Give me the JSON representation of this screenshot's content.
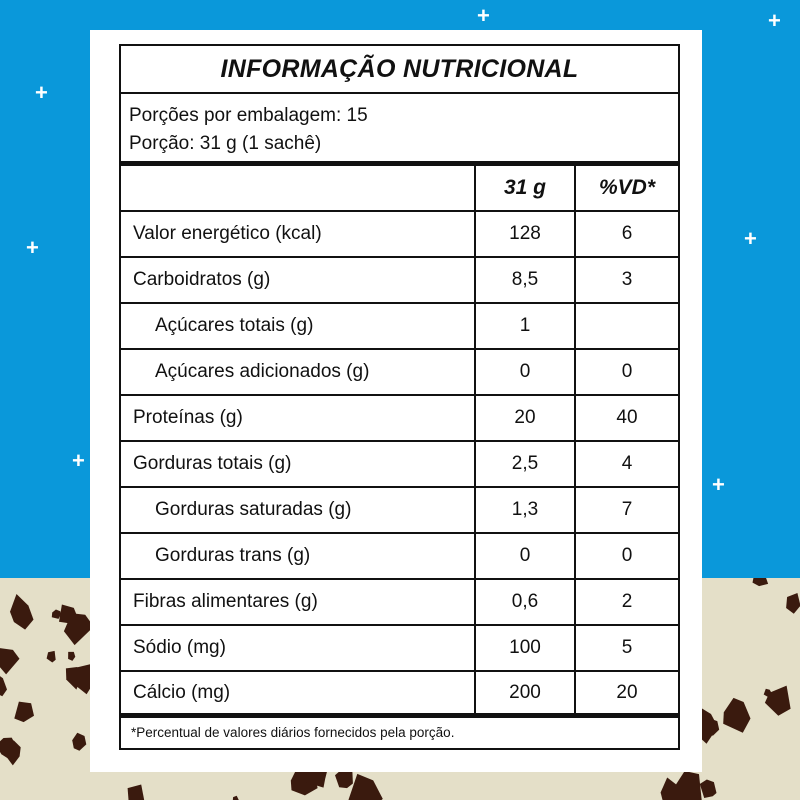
{
  "colors": {
    "background_top": "#0a98da",
    "background_bottom": "#e4dfc8",
    "chips": "#3a1a0e"
  },
  "label": {
    "title": "INFORMAÇÃO NUTRICIONAL",
    "servings_per_package": "Porções por embalagem: 15",
    "serving_size": "Porção: 31 g (1 sachê)",
    "columns": [
      "",
      "31 g",
      "%VD*"
    ],
    "rows": [
      {
        "name": "Valor energético (kcal)",
        "amount": "128",
        "dv": "6",
        "indent": false
      },
      {
        "name": "Carboidratos (g)",
        "amount": "8,5",
        "dv": "3",
        "indent": false
      },
      {
        "name": "Açúcares totais (g)",
        "amount": "1",
        "dv": "",
        "indent": true
      },
      {
        "name": "Açúcares adicionados (g)",
        "amount": "0",
        "dv": "0",
        "indent": true
      },
      {
        "name": "Proteínas (g)",
        "amount": "20",
        "dv": "40",
        "indent": false
      },
      {
        "name": "Gorduras totais (g)",
        "amount": "2,5",
        "dv": "4",
        "indent": false
      },
      {
        "name": "Gorduras saturadas (g)",
        "amount": "1,3",
        "dv": "7",
        "indent": true
      },
      {
        "name": "Gorduras trans (g)",
        "amount": "0",
        "dv": "0",
        "indent": true
      },
      {
        "name": "Fibras alimentares (g)",
        "amount": "0,6",
        "dv": "2",
        "indent": false
      },
      {
        "name": "Sódio (mg)",
        "amount": "100",
        "dv": "5",
        "indent": false
      },
      {
        "name": "Cálcio (mg)",
        "amount": "200",
        "dv": "20",
        "indent": false
      }
    ],
    "footnote": "*Percentual de valores diários fornecidos pela porção."
  }
}
